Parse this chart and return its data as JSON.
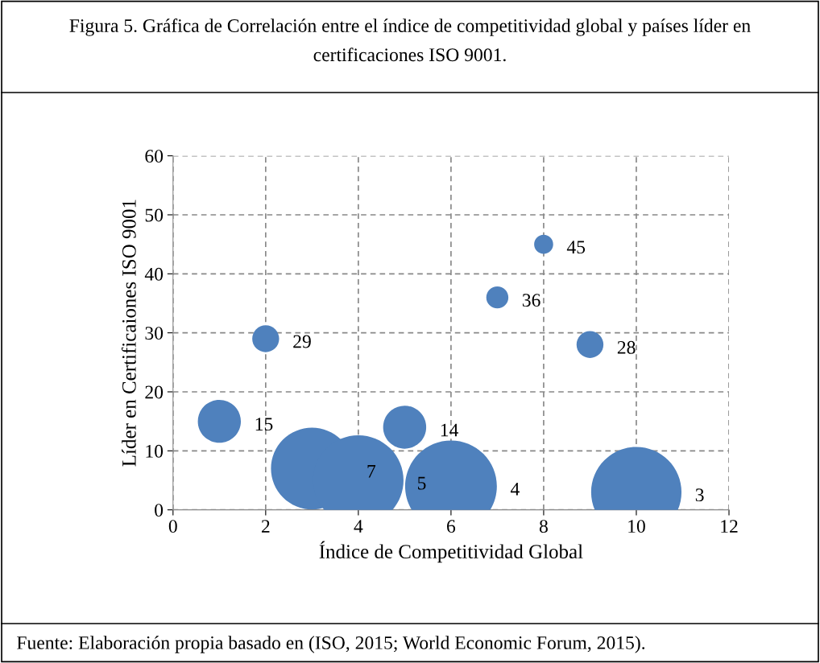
{
  "chart_data": {
    "type": "bubble",
    "title": "Figura 5. Gráfica de Correlación entre el índice de competitividad global y países líder en certificaciones ISO 9001.",
    "xlabel": "Índice de Competitividad Global",
    "ylabel": "Líder en Certificaiones ISO 9001",
    "x": [
      1,
      2,
      3,
      4,
      5,
      6,
      7,
      8,
      9,
      10
    ],
    "series": [
      {
        "color": "#4f81bd",
        "values": [
          15,
          29,
          7,
          5,
          14,
          4,
          36,
          45,
          28,
          3
        ],
        "sizes": [
          0.22,
          0.086,
          0.8,
          0.97,
          0.22,
          1,
          0.058,
          0.043,
          0.086,
          0.97
        ]
      }
    ],
    "data_labels": true,
    "xlim": [
      0,
      12
    ],
    "ylim": [
      0,
      60
    ],
    "xticks": [
      0,
      2,
      4,
      6,
      8,
      10,
      12
    ],
    "yticks": [
      0,
      10,
      20,
      30,
      40,
      50,
      60
    ],
    "grid": true,
    "annotations": [
      "Fuente: Elaboración propia basado en (ISO, 2015; World Economic Forum, 2015)."
    ]
  }
}
